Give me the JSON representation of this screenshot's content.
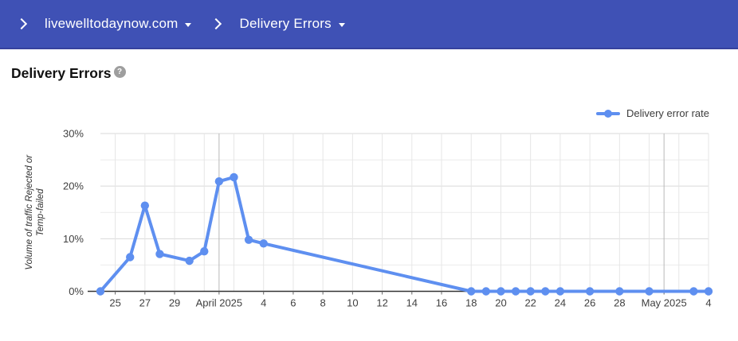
{
  "colors": {
    "header_bg": "#3f51b5",
    "series_blue": "#5e8ff0",
    "grid_minor": "#ebebeb",
    "grid_major": "#d9d9d9",
    "grid_vert": "#e6e6e6",
    "grid_month": "#b8b8b8",
    "axis_line": "#333333"
  },
  "header": {
    "domain_label": "livewelltodaynow.com",
    "page_label": "Delivery Errors"
  },
  "page": {
    "title": "Delivery Errors",
    "help_icon_glyph": "?"
  },
  "legend": {
    "label": "Delivery error rate",
    "color": "#5e8ff0"
  },
  "chart_data": {
    "type": "line",
    "title": "Delivery error rate",
    "ylabel": "Volume of traffic Rejected or Temp-failed",
    "ylabel_lines": [
      "Volume of traffic Rejected or",
      "Temp-failed"
    ],
    "ylim": [
      0,
      30
    ],
    "y_major_ticks": [
      0,
      10,
      20,
      30
    ],
    "y_tick_suffix": "%",
    "y_minor_step": 5,
    "grid": true,
    "legend_position": "top-right",
    "x_start": "2025-03-24",
    "x_end": "2025-05-04",
    "x_grid_every_days": 2,
    "x_grid_start_offset": 1,
    "x_ticks": [
      {
        "date": "2025-03-25",
        "label": "25"
      },
      {
        "date": "2025-03-27",
        "label": "27"
      },
      {
        "date": "2025-03-29",
        "label": "29"
      },
      {
        "date": "2025-04-01",
        "label": "April 2025",
        "month": true
      },
      {
        "date": "2025-04-04",
        "label": "4"
      },
      {
        "date": "2025-04-06",
        "label": "6"
      },
      {
        "date": "2025-04-08",
        "label": "8"
      },
      {
        "date": "2025-04-10",
        "label": "10"
      },
      {
        "date": "2025-04-12",
        "label": "12"
      },
      {
        "date": "2025-04-14",
        "label": "14"
      },
      {
        "date": "2025-04-16",
        "label": "16"
      },
      {
        "date": "2025-04-18",
        "label": "18"
      },
      {
        "date": "2025-04-20",
        "label": "20"
      },
      {
        "date": "2025-04-22",
        "label": "22"
      },
      {
        "date": "2025-04-24",
        "label": "24"
      },
      {
        "date": "2025-04-26",
        "label": "26"
      },
      {
        "date": "2025-04-28",
        "label": "28"
      },
      {
        "date": "2025-05-01",
        "label": "May 2025",
        "month": true
      },
      {
        "date": "2025-05-04",
        "label": "4"
      }
    ],
    "series": [
      {
        "name": "Delivery error rate",
        "color": "#5e8ff0",
        "points": [
          {
            "date": "2025-03-24",
            "value": 0
          },
          {
            "date": "2025-03-26",
            "value": 6.5
          },
          {
            "date": "2025-03-27",
            "value": 16.3
          },
          {
            "date": "2025-03-28",
            "value": 7.1
          },
          {
            "date": "2025-03-30",
            "value": 5.8
          },
          {
            "date": "2025-03-31",
            "value": 7.6
          },
          {
            "date": "2025-04-01",
            "value": 20.9
          },
          {
            "date": "2025-04-02",
            "value": 21.7
          },
          {
            "date": "2025-04-03",
            "value": 9.8
          },
          {
            "date": "2025-04-04",
            "value": 9.1
          },
          {
            "date": "2025-04-18",
            "value": 0
          },
          {
            "date": "2025-04-19",
            "value": 0
          },
          {
            "date": "2025-04-20",
            "value": 0
          },
          {
            "date": "2025-04-21",
            "value": 0
          },
          {
            "date": "2025-04-22",
            "value": 0
          },
          {
            "date": "2025-04-23",
            "value": 0
          },
          {
            "date": "2025-04-24",
            "value": 0
          },
          {
            "date": "2025-04-26",
            "value": 0
          },
          {
            "date": "2025-04-28",
            "value": 0
          },
          {
            "date": "2025-04-30",
            "value": 0
          },
          {
            "date": "2025-05-03",
            "value": 0
          },
          {
            "date": "2025-05-04",
            "value": 0
          }
        ]
      }
    ]
  }
}
